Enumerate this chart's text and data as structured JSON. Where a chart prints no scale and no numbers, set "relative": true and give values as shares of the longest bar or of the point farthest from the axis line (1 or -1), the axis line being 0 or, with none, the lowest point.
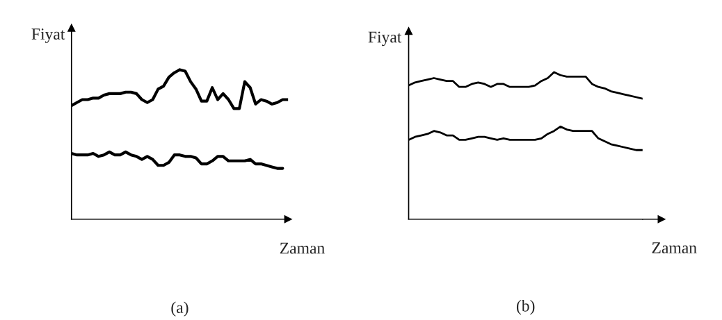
{
  "chart_data": [
    {
      "type": "line",
      "title": "(a)",
      "xlabel": "Zaman",
      "ylabel": "Fiyat",
      "relative": true,
      "tick_labels": false,
      "categories": [
        null,
        null,
        null,
        null,
        null,
        null,
        null,
        null,
        null,
        null,
        null,
        null,
        null,
        null,
        null,
        null,
        null,
        null,
        null,
        null,
        null,
        null,
        null,
        null,
        null,
        null,
        null,
        null,
        null,
        null,
        null,
        null,
        null,
        null,
        null,
        null,
        null,
        null,
        null,
        null,
        null
      ],
      "series": [
        {
          "color": "#000000",
          "values": [
            0.76,
            0.78,
            0.8,
            0.8,
            0.81,
            0.81,
            0.83,
            0.84,
            0.84,
            0.84,
            0.85,
            0.85,
            0.84,
            0.8,
            0.78,
            0.8,
            0.87,
            0.89,
            0.95,
            0.98,
            1.0,
            0.99,
            0.92,
            0.87,
            0.79,
            0.79,
            0.88,
            0.8,
            0.84,
            0.8,
            0.74,
            0.74,
            0.92,
            0.88,
            0.77,
            0.8,
            0.79,
            0.77,
            0.78,
            0.8,
            0.8
          ]
        },
        {
          "color": "#000000",
          "values": [
            0.44,
            0.43,
            0.43,
            0.43,
            0.44,
            0.42,
            0.43,
            0.45,
            0.43,
            0.43,
            0.45,
            0.43,
            0.42,
            0.4,
            0.42,
            0.4,
            0.36,
            0.36,
            0.38,
            0.43,
            0.43,
            0.42,
            0.42,
            0.41,
            0.37,
            0.37,
            0.39,
            0.42,
            0.42,
            0.39,
            0.39,
            0.39,
            0.39,
            0.4,
            0.37,
            0.37,
            0.36,
            0.35,
            0.34,
            0.34,
            null
          ]
        }
      ]
    },
    {
      "type": "line",
      "title": "(b)",
      "xlabel": "Zaman",
      "ylabel": "Fiyat",
      "relative": true,
      "tick_labels": false,
      "categories": [
        null,
        null,
        null,
        null,
        null,
        null,
        null,
        null,
        null,
        null,
        null,
        null,
        null,
        null,
        null,
        null,
        null,
        null,
        null,
        null,
        null,
        null,
        null,
        null,
        null,
        null,
        null,
        null,
        null,
        null,
        null,
        null,
        null,
        null,
        null,
        null,
        null,
        null
      ],
      "series": [
        {
          "color": "#000000",
          "values": [
            0.91,
            0.93,
            0.94,
            0.95,
            0.96,
            0.95,
            0.94,
            0.94,
            0.9,
            0.9,
            0.92,
            0.93,
            0.92,
            0.9,
            0.92,
            0.92,
            0.9,
            0.9,
            0.9,
            0.9,
            0.91,
            0.94,
            0.96,
            1.0,
            0.98,
            0.97,
            0.97,
            0.97,
            0.97,
            0.92,
            0.9,
            0.89,
            0.87,
            0.86,
            0.85,
            0.84,
            0.83,
            0.82
          ]
        },
        {
          "color": "#000000",
          "values": [
            0.54,
            0.56,
            0.57,
            0.58,
            0.6,
            0.59,
            0.57,
            0.57,
            0.54,
            0.54,
            0.55,
            0.56,
            0.56,
            0.55,
            0.54,
            0.55,
            0.54,
            0.54,
            0.54,
            0.54,
            0.54,
            0.55,
            0.58,
            0.6,
            0.63,
            0.61,
            0.6,
            0.6,
            0.6,
            0.6,
            0.55,
            0.53,
            0.51,
            0.5,
            0.49,
            0.48,
            0.47,
            0.47
          ]
        }
      ]
    }
  ]
}
